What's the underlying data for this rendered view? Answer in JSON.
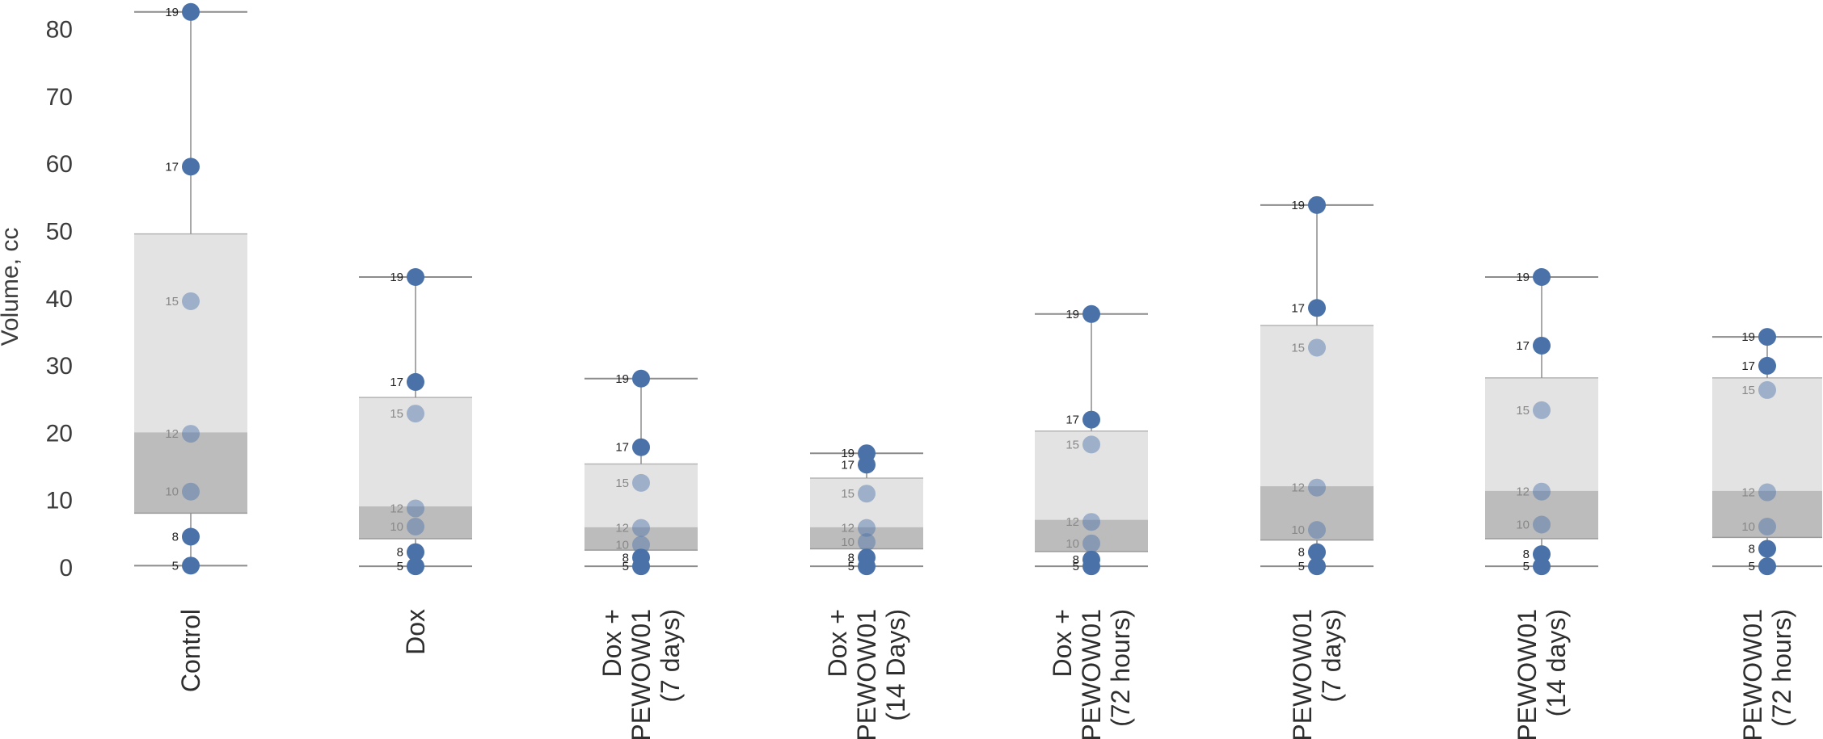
{
  "chart_data": {
    "type": "box-dot",
    "title": "",
    "xlabel": "",
    "ylabel": "Volume, cc",
    "ylim": [
      0,
      83
    ],
    "yticks": [
      0,
      10,
      20,
      30,
      40,
      50,
      60,
      70,
      80
    ],
    "grid": false,
    "colors": {
      "point": "#4a72a8",
      "box_outer": "#e3e3e3",
      "box_inner": "#bcbcbc",
      "whisker": "#8c8c8c",
      "label_dark": "#222222",
      "label_light": "#888888"
    },
    "groups": [
      {
        "label_lines": [
          "Control"
        ],
        "percentiles": [
          5,
          8,
          10,
          12,
          15,
          17,
          19
        ],
        "values": [
          0.2,
          4.5,
          11.2,
          19.8,
          39.5,
          59.5,
          82.5
        ],
        "box_outer": [
          8,
          49.5
        ],
        "box_inner": [
          8,
          20
        ],
        "whisker": [
          0.2,
          82.5
        ]
      },
      {
        "label_lines": [
          "Dox"
        ],
        "percentiles": [
          5,
          8,
          10,
          12,
          15,
          17,
          19
        ],
        "values": [
          0.1,
          2.2,
          6.0,
          8.7,
          22.8,
          27.5,
          43.1
        ],
        "box_outer": [
          4.2,
          25.2
        ],
        "box_inner": [
          4.2,
          9.0
        ],
        "whisker": [
          0.1,
          43.1
        ]
      },
      {
        "label_lines": [
          "Dox +",
          "PEWOW01",
          "(7 days)"
        ],
        "percentiles": [
          5,
          8,
          10,
          12,
          15,
          17,
          19
        ],
        "values": [
          0.1,
          1.4,
          3.3,
          5.8,
          12.5,
          17.8,
          28.0
        ],
        "box_outer": [
          2.5,
          15.3
        ],
        "box_inner": [
          2.5,
          5.9
        ],
        "whisker": [
          0.1,
          28.0
        ]
      },
      {
        "label_lines": [
          "Dox +",
          "PEWOW01",
          "(14 Days)"
        ],
        "percentiles": [
          5,
          8,
          10,
          12,
          15,
          17,
          19
        ],
        "values": [
          0.1,
          1.4,
          3.7,
          5.8,
          10.9,
          15.2,
          16.9
        ],
        "box_outer": [
          2.7,
          13.2
        ],
        "box_inner": [
          2.7,
          5.9
        ],
        "whisker": [
          0.1,
          16.9
        ]
      },
      {
        "label_lines": [
          "Dox +",
          "PEWOW01",
          "(72 hours)"
        ],
        "percentiles": [
          5,
          8,
          10,
          12,
          15,
          17,
          19
        ],
        "values": [
          0.1,
          1.1,
          3.5,
          6.7,
          18.2,
          21.9,
          37.6
        ],
        "box_outer": [
          2.3,
          20.2
        ],
        "box_inner": [
          2.3,
          7.0
        ],
        "whisker": [
          0.1,
          37.6
        ]
      },
      {
        "label_lines": [
          "PEWOW01",
          "(7 days)"
        ],
        "percentiles": [
          5,
          8,
          10,
          12,
          15,
          17,
          19
        ],
        "values": [
          0.1,
          2.2,
          5.5,
          11.8,
          32.6,
          38.5,
          53.8
        ],
        "box_outer": [
          4.0,
          35.9
        ],
        "box_inner": [
          4.0,
          12.0
        ],
        "whisker": [
          0.1,
          53.8
        ]
      },
      {
        "label_lines": [
          "PEWOW01",
          "(14 days)"
        ],
        "percentiles": [
          5,
          8,
          10,
          12,
          15,
          17,
          19
        ],
        "values": [
          0.1,
          1.9,
          6.3,
          11.2,
          23.3,
          32.9,
          43.1
        ],
        "box_outer": [
          4.2,
          28.1
        ],
        "box_inner": [
          4.2,
          11.3
        ],
        "whisker": [
          0.1,
          43.1
        ]
      },
      {
        "label_lines": [
          "PEWOW01",
          "(72 hours)"
        ],
        "percentiles": [
          5,
          8,
          10,
          12,
          15,
          17,
          19
        ],
        "values": [
          0.1,
          2.7,
          6.0,
          11.1,
          26.3,
          29.9,
          34.2
        ],
        "box_outer": [
          4.4,
          28.1
        ],
        "box_inner": [
          4.4,
          11.3
        ],
        "whisker": [
          0.1,
          34.2
        ]
      }
    ]
  }
}
